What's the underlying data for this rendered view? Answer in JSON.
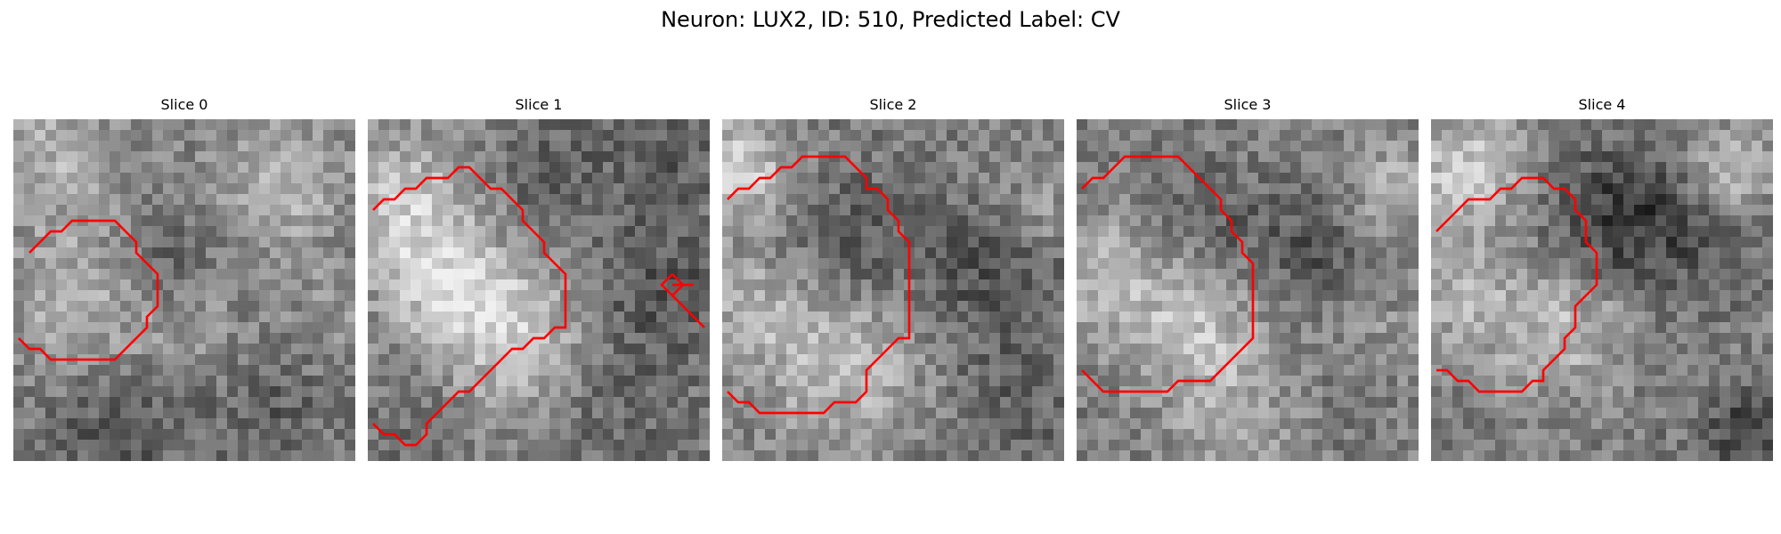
{
  "figure": {
    "title": "Neuron: LUX2, ID: 510, Predicted Label: CV",
    "contour_color": "#ff0000"
  },
  "panels": [
    {
      "label": "Slice 0",
      "tones": [
        {
          "fx": 0.18,
          "fy": 0.52,
          "r": 0.28,
          "v": 175
        },
        {
          "fx": 0.12,
          "fy": 0.1,
          "r": 0.22,
          "v": 175
        },
        {
          "fx": 0.78,
          "fy": 0.18,
          "r": 0.22,
          "v": 185
        },
        {
          "fx": 0.52,
          "fy": 0.62,
          "r": 0.2,
          "v": 150
        },
        {
          "fx": 0.95,
          "fy": 0.55,
          "r": 0.18,
          "v": 150
        },
        {
          "fx": 0.45,
          "fy": 0.4,
          "r": 0.18,
          "v": 90
        },
        {
          "fx": 0.3,
          "fy": 0.92,
          "r": 0.25,
          "v": 85
        },
        {
          "fx": 0.75,
          "fy": 0.85,
          "r": 0.22,
          "v": 95
        }
      ],
      "contour": [
        [
          [
            1,
            12
          ],
          [
            3,
            10
          ],
          [
            4,
            10
          ],
          [
            5,
            9
          ],
          [
            9,
            9
          ],
          [
            10,
            10
          ],
          [
            11,
            11
          ],
          [
            11,
            12
          ],
          [
            12,
            13
          ],
          [
            13,
            14
          ],
          [
            13,
            17
          ],
          [
            12,
            18
          ],
          [
            12,
            19
          ],
          [
            11,
            20
          ],
          [
            10,
            21
          ],
          [
            9,
            22
          ],
          [
            3,
            22
          ],
          [
            2,
            21
          ],
          [
            1,
            21
          ],
          [
            0,
            20
          ]
        ]
      ]
    },
    {
      "label": "Slice 1",
      "tones": [
        {
          "fx": 0.1,
          "fy": 0.25,
          "r": 0.25,
          "v": 200
        },
        {
          "fx": 0.42,
          "fy": 0.62,
          "r": 0.26,
          "v": 205
        },
        {
          "fx": 0.22,
          "fy": 0.48,
          "r": 0.2,
          "v": 190
        },
        {
          "fx": 0.55,
          "fy": 0.18,
          "r": 0.22,
          "v": 95
        },
        {
          "fx": 0.85,
          "fy": 0.5,
          "r": 0.24,
          "v": 80
        },
        {
          "fx": 0.88,
          "fy": 0.1,
          "r": 0.18,
          "v": 90
        },
        {
          "fx": 0.72,
          "fy": 0.88,
          "r": 0.25,
          "v": 100
        },
        {
          "fx": 0.12,
          "fy": 0.88,
          "r": 0.18,
          "v": 110
        }
      ],
      "contour": [
        [
          [
            0,
            8
          ],
          [
            1,
            7
          ],
          [
            2,
            7
          ],
          [
            3,
            6
          ],
          [
            4,
            6
          ],
          [
            5,
            5
          ],
          [
            7,
            5
          ],
          [
            8,
            4
          ],
          [
            9,
            4
          ],
          [
            10,
            5
          ],
          [
            11,
            6
          ],
          [
            12,
            6
          ],
          [
            13,
            7
          ],
          [
            14,
            8
          ],
          [
            14,
            9
          ],
          [
            15,
            10
          ],
          [
            16,
            11
          ],
          [
            16,
            12
          ],
          [
            17,
            13
          ],
          [
            18,
            14
          ],
          [
            18,
            19
          ],
          [
            17,
            19
          ],
          [
            16,
            20
          ],
          [
            15,
            20
          ],
          [
            14,
            21
          ],
          [
            13,
            21
          ],
          [
            12,
            22
          ],
          [
            11,
            23
          ],
          [
            10,
            24
          ],
          [
            9,
            25
          ],
          [
            8,
            25
          ],
          [
            7,
            26
          ],
          [
            6,
            27
          ],
          [
            5,
            28
          ],
          [
            5,
            29
          ],
          [
            4,
            30
          ],
          [
            3,
            30
          ],
          [
            2,
            29
          ],
          [
            1,
            29
          ],
          [
            0,
            28
          ]
        ],
        [
          [
            28,
            14
          ],
          [
            29,
            15
          ],
          [
            28,
            16
          ],
          [
            27,
            15
          ],
          [
            28,
            14
          ]
        ],
        [
          [
            28,
            15
          ],
          [
            30,
            15
          ]
        ],
        [
          [
            28,
            16
          ],
          [
            29,
            17
          ],
          [
            30,
            18
          ],
          [
            31,
            19
          ]
        ]
      ]
    },
    {
      "label": "Slice 2",
      "tones": [
        {
          "fx": 0.05,
          "fy": 0.15,
          "r": 0.18,
          "v": 210
        },
        {
          "fx": 0.35,
          "fy": 0.72,
          "r": 0.28,
          "v": 190
        },
        {
          "fx": 0.08,
          "fy": 0.55,
          "r": 0.2,
          "v": 170
        },
        {
          "fx": 0.4,
          "fy": 0.35,
          "r": 0.24,
          "v": 85
        },
        {
          "fx": 0.8,
          "fy": 0.45,
          "r": 0.25,
          "v": 80
        },
        {
          "fx": 0.9,
          "fy": 0.15,
          "r": 0.18,
          "v": 140
        },
        {
          "fx": 0.85,
          "fy": 0.85,
          "r": 0.22,
          "v": 95
        },
        {
          "fx": 0.95,
          "fy": 0.3,
          "r": 0.12,
          "v": 160
        }
      ],
      "contour": [
        [
          [
            0,
            7
          ],
          [
            1,
            6
          ],
          [
            2,
            6
          ],
          [
            3,
            5
          ],
          [
            4,
            5
          ],
          [
            5,
            4
          ],
          [
            6,
            4
          ],
          [
            7,
            3
          ],
          [
            11,
            3
          ],
          [
            12,
            4
          ],
          [
            13,
            5
          ],
          [
            13,
            6
          ],
          [
            14,
            6
          ],
          [
            15,
            7
          ],
          [
            15,
            8
          ],
          [
            16,
            9
          ],
          [
            16,
            10
          ],
          [
            17,
            11
          ],
          [
            17,
            20
          ],
          [
            16,
            20
          ],
          [
            15,
            21
          ],
          [
            14,
            22
          ],
          [
            13,
            23
          ],
          [
            13,
            25
          ],
          [
            12,
            26
          ],
          [
            10,
            26
          ],
          [
            9,
            27
          ],
          [
            3,
            27
          ],
          [
            2,
            26
          ],
          [
            1,
            26
          ],
          [
            0,
            25
          ]
        ]
      ]
    },
    {
      "label": "Slice 3",
      "tones": [
        {
          "fx": 0.08,
          "fy": 0.45,
          "r": 0.22,
          "v": 180
        },
        {
          "fx": 0.35,
          "fy": 0.62,
          "r": 0.24,
          "v": 190
        },
        {
          "fx": 0.4,
          "fy": 0.3,
          "r": 0.2,
          "v": 95
        },
        {
          "fx": 0.7,
          "fy": 0.4,
          "r": 0.22,
          "v": 85
        },
        {
          "fx": 0.92,
          "fy": 0.2,
          "r": 0.18,
          "v": 170
        },
        {
          "fx": 0.88,
          "fy": 0.62,
          "r": 0.2,
          "v": 150
        },
        {
          "fx": 0.5,
          "fy": 0.92,
          "r": 0.25,
          "v": 165
        },
        {
          "fx": 0.75,
          "fy": 0.85,
          "r": 0.18,
          "v": 110
        }
      ],
      "contour": [
        [
          [
            0,
            6
          ],
          [
            1,
            5
          ],
          [
            2,
            5
          ],
          [
            3,
            4
          ],
          [
            4,
            3
          ],
          [
            9,
            3
          ],
          [
            10,
            4
          ],
          [
            11,
            5
          ],
          [
            12,
            6
          ],
          [
            13,
            7
          ],
          [
            13,
            8
          ],
          [
            14,
            9
          ],
          [
            14,
            10
          ],
          [
            15,
            11
          ],
          [
            15,
            12
          ],
          [
            16,
            13
          ],
          [
            16,
            20
          ],
          [
            15,
            21
          ],
          [
            14,
            22
          ],
          [
            13,
            23
          ],
          [
            12,
            24
          ],
          [
            9,
            24
          ],
          [
            8,
            25
          ],
          [
            2,
            25
          ],
          [
            1,
            24
          ],
          [
            0,
            23
          ]
        ]
      ]
    },
    {
      "label": "Slice 4",
      "tones": [
        {
          "fx": 0.1,
          "fy": 0.15,
          "r": 0.22,
          "v": 200
        },
        {
          "fx": 0.12,
          "fy": 0.55,
          "r": 0.2,
          "v": 175
        },
        {
          "fx": 0.4,
          "fy": 0.62,
          "r": 0.22,
          "v": 185
        },
        {
          "fx": 0.55,
          "fy": 0.28,
          "r": 0.24,
          "v": 55
        },
        {
          "fx": 0.8,
          "fy": 0.35,
          "r": 0.2,
          "v": 90
        },
        {
          "fx": 0.88,
          "fy": 0.15,
          "r": 0.16,
          "v": 190
        },
        {
          "fx": 0.65,
          "fy": 0.85,
          "r": 0.22,
          "v": 120
        },
        {
          "fx": 0.92,
          "fy": 0.92,
          "r": 0.14,
          "v": 60
        }
      ],
      "contour": [
        [
          [
            0,
            10
          ],
          [
            1,
            9
          ],
          [
            2,
            8
          ],
          [
            3,
            7
          ],
          [
            5,
            7
          ],
          [
            6,
            6
          ],
          [
            7,
            6
          ],
          [
            8,
            5
          ],
          [
            10,
            5
          ],
          [
            11,
            6
          ],
          [
            12,
            6
          ],
          [
            13,
            7
          ],
          [
            13,
            8
          ],
          [
            14,
            9
          ],
          [
            14,
            11
          ],
          [
            15,
            12
          ],
          [
            15,
            15
          ],
          [
            14,
            16
          ],
          [
            13,
            17
          ],
          [
            13,
            19
          ],
          [
            12,
            20
          ],
          [
            12,
            21
          ],
          [
            11,
            22
          ],
          [
            10,
            23
          ],
          [
            10,
            24
          ],
          [
            9,
            24
          ],
          [
            8,
            25
          ],
          [
            4,
            25
          ],
          [
            3,
            24
          ],
          [
            2,
            24
          ],
          [
            1,
            23
          ],
          [
            0,
            23
          ]
        ]
      ]
    }
  ]
}
